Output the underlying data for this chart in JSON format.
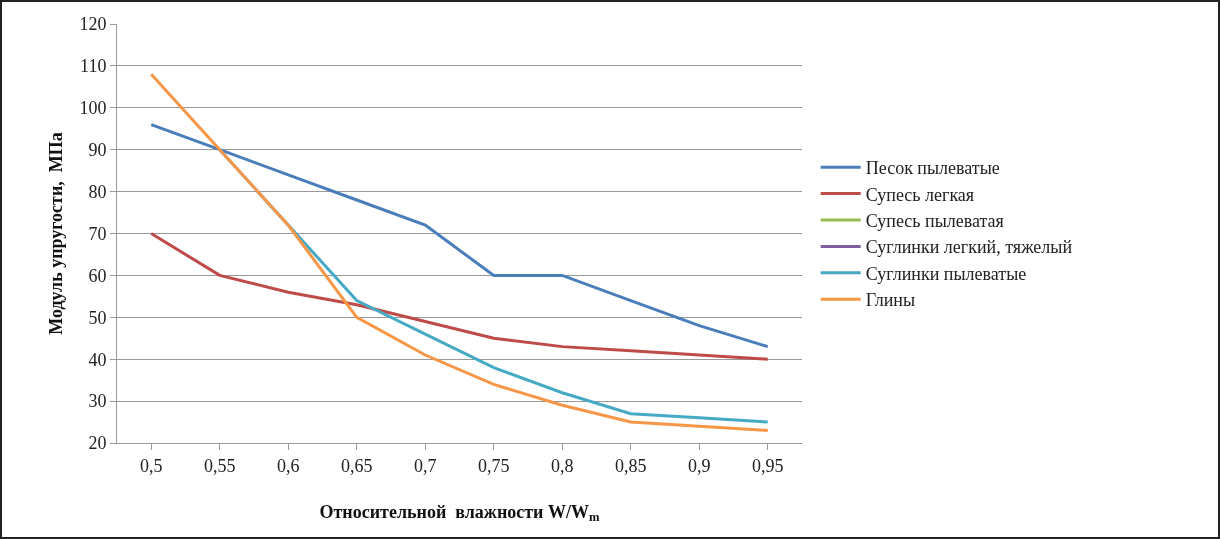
{
  "chart_data": {
    "type": "line",
    "xlabel": "Относительной  влажности W/W$_{m}$",
    "ylabel": "Модуль упругости,  МПа",
    "categories": [
      "0,5",
      "0,55",
      "0,6",
      "0,65",
      "0,7",
      "0,75",
      "0,8",
      "0,85",
      "0,9",
      "0,95"
    ],
    "ylim": [
      20,
      120
    ],
    "yticks": [
      20,
      30,
      40,
      50,
      60,
      70,
      80,
      90,
      100,
      110,
      120
    ],
    "grid": "y",
    "legend": "right",
    "marker": "none",
    "line_style": "solid",
    "series": [
      {
        "name": "Песок пылеватые",
        "color": "#4a7ebb",
        "values": [
          96,
          90,
          84,
          78,
          72,
          60,
          60,
          54,
          48,
          43
        ]
      },
      {
        "name": "Супесь легкая",
        "color": "#be4b48",
        "values": [
          70,
          60,
          56,
          53,
          49,
          45,
          43,
          42,
          41,
          40
        ]
      },
      {
        "name": "Супесь пылеватая",
        "color": "#98b954",
        "values": [
          null,
          null,
          null,
          null,
          null,
          null,
          null,
          null,
          null,
          null
        ]
      },
      {
        "name": "Суглинки легкий, тяжелый",
        "color": "#7d60a0",
        "values": [
          null,
          null,
          null,
          null,
          null,
          null,
          null,
          null,
          null,
          null
        ]
      },
      {
        "name": "Суглинки пылеватые",
        "color": "#46aac5",
        "values": [
          null,
          90,
          72,
          54,
          46,
          38,
          32,
          27,
          26,
          25
        ]
      },
      {
        "name": "Глины",
        "color": "#f79646",
        "values": [
          108,
          90,
          72,
          50,
          41,
          34,
          29,
          25,
          24,
          23
        ]
      }
    ]
  }
}
